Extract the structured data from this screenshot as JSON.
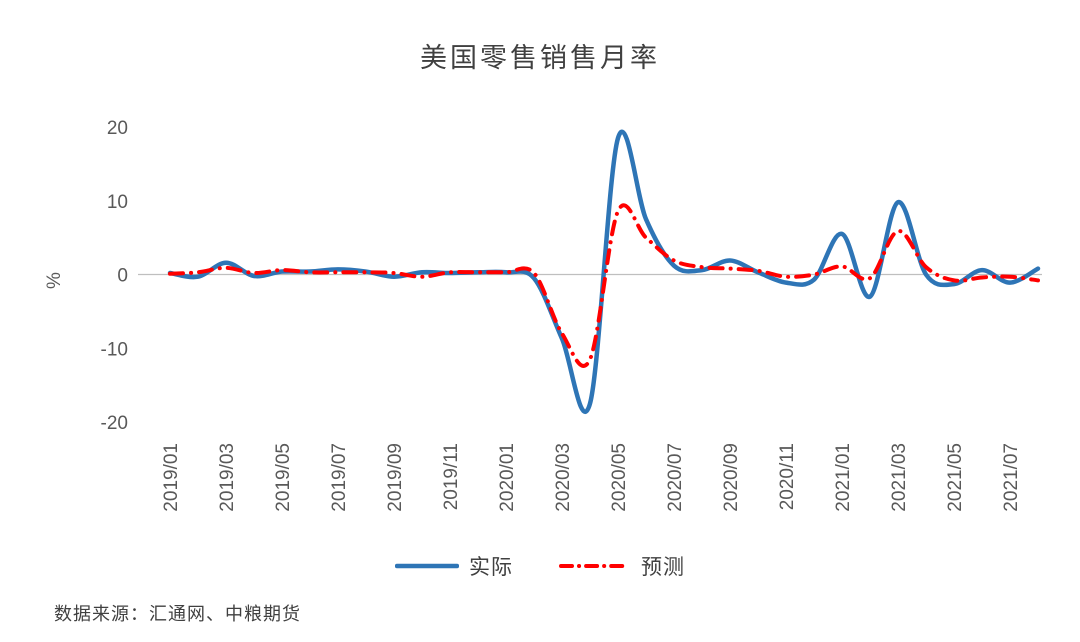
{
  "chart_data": {
    "type": "line",
    "title": "美国零售销售月率",
    "ylabel": "%",
    "source_note": "数据来源：汇通网、中粮期货",
    "ylim": [
      -20,
      20
    ],
    "yticks": [
      20,
      10,
      0,
      -10,
      -20
    ],
    "xtick_step": 2,
    "grid": false,
    "legend_position": "bottom",
    "zero_line_color": "#BFBFBF",
    "axis_text_color": "#595959",
    "title_color": "#404040",
    "x": [
      "2019/01",
      "2019/02",
      "2019/03",
      "2019/04",
      "2019/05",
      "2019/06",
      "2019/07",
      "2019/08",
      "2019/09",
      "2019/10",
      "2019/11",
      "2019/12",
      "2020/01",
      "2020/02",
      "2020/03",
      "2020/04",
      "2020/05",
      "2020/06",
      "2020/07",
      "2020/08",
      "2020/09",
      "2020/10",
      "2020/11",
      "2020/12",
      "2021/01",
      "2021/02",
      "2021/03",
      "2021/04",
      "2021/05",
      "2021/06",
      "2021/07",
      "2021/08"
    ],
    "xtick_labels": [
      "2019/01",
      "2019/03",
      "2019/05",
      "2019/07",
      "2019/09",
      "2019/11",
      "2020/01",
      "2020/03",
      "2020/05",
      "2020/07",
      "2020/09",
      "2020/11",
      "2021/01",
      "2021/03",
      "2021/05",
      "2021/07"
    ],
    "series": [
      {
        "key": "actual",
        "name": "实际",
        "color": "#2E75B6",
        "style": "solid",
        "line_width": 4.5,
        "values": [
          0.2,
          -0.3,
          1.6,
          -0.2,
          0.4,
          0.4,
          0.7,
          0.4,
          -0.3,
          0.3,
          0.2,
          0.3,
          0.3,
          -0.5,
          -8.7,
          -17.5,
          18.5,
          7.5,
          1.2,
          0.6,
          1.9,
          0.3,
          -1.1,
          -0.7,
          5.5,
          -3.0,
          9.8,
          0.0,
          -1.3,
          0.6,
          -1.1,
          0.8
        ]
      },
      {
        "key": "forecast",
        "name": "预测",
        "color": "#FF0000",
        "style": "dash-dot",
        "line_width": 4,
        "values": [
          0.1,
          0.3,
          0.9,
          0.2,
          0.6,
          0.3,
          0.3,
          0.3,
          0.2,
          -0.3,
          0.3,
          0.3,
          0.3,
          0.2,
          -8.0,
          -11.5,
          8.6,
          5.0,
          1.9,
          1.0,
          0.8,
          0.5,
          -0.3,
          0.0,
          1.1,
          -0.5,
          5.9,
          1.0,
          -0.8,
          -0.4,
          -0.3,
          -0.8
        ]
      }
    ]
  }
}
